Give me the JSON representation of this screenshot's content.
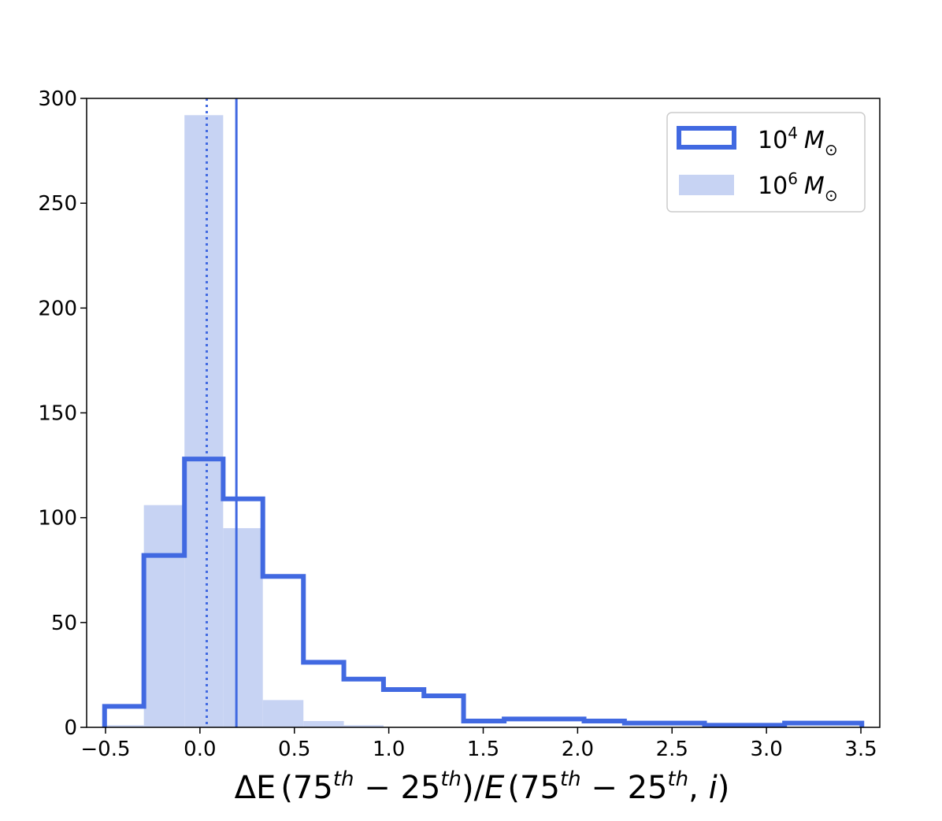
{
  "chart_data": {
    "type": "histogram",
    "xlabel": "ΔE(75th − 25th)/E(75th − 25th, i)",
    "ylabel": "",
    "xlim": [
      -0.6,
      3.6
    ],
    "ylim": [
      0,
      300
    ],
    "xticks": [
      -0.5,
      0.0,
      0.5,
      1.0,
      1.5,
      2.0,
      2.5,
      3.0,
      3.5
    ],
    "xtick_labels": [
      "−0.5",
      "0.0",
      "0.5",
      "1.0",
      "1.5",
      "2.0",
      "2.5",
      "3.0",
      "3.5"
    ],
    "yticks": [
      0,
      50,
      100,
      150,
      200,
      250,
      300
    ],
    "ytick_labels": [
      "0",
      "50",
      "100",
      "150",
      "200",
      "250",
      "300"
    ],
    "legend_position": "top-right",
    "grid": false,
    "series": [
      {
        "name": "10^4 M⊙",
        "style": "step",
        "color": "#4169e1",
        "bins": [
          {
            "x0": -0.505,
            "x1": -0.297,
            "count": 10
          },
          {
            "x0": -0.297,
            "x1": -0.082,
            "count": 82
          },
          {
            "x0": -0.082,
            "x1": 0.123,
            "count": 128
          },
          {
            "x0": 0.123,
            "x1": 0.333,
            "count": 109
          },
          {
            "x0": 0.333,
            "x1": 0.548,
            "count": 72
          },
          {
            "x0": 0.548,
            "x1": 0.762,
            "count": 31
          },
          {
            "x0": 0.762,
            "x1": 0.972,
            "count": 23
          },
          {
            "x0": 0.972,
            "x1": 1.186,
            "count": 18
          },
          {
            "x0": 1.186,
            "x1": 1.396,
            "count": 15
          },
          {
            "x0": 1.396,
            "x1": 1.611,
            "count": 3
          },
          {
            "x0": 1.611,
            "x1": 2.034,
            "count": 4
          },
          {
            "x0": 2.034,
            "x1": 2.248,
            "count": 3
          },
          {
            "x0": 2.248,
            "x1": 2.672,
            "count": 2
          },
          {
            "x0": 2.672,
            "x1": 3.096,
            "count": 1
          },
          {
            "x0": 3.096,
            "x1": 3.505,
            "count": 2
          }
        ]
      },
      {
        "name": "10^6 M⊙",
        "style": "filled",
        "color": "#c7d3f3",
        "bins": [
          {
            "x0": -0.505,
            "x1": -0.297,
            "count": 1
          },
          {
            "x0": -0.297,
            "x1": -0.082,
            "count": 106
          },
          {
            "x0": -0.082,
            "x1": 0.123,
            "count": 292
          },
          {
            "x0": 0.123,
            "x1": 0.333,
            "count": 95
          },
          {
            "x0": 0.333,
            "x1": 0.548,
            "count": 13
          },
          {
            "x0": 0.548,
            "x1": 0.762,
            "count": 3
          },
          {
            "x0": 0.762,
            "x1": 0.972,
            "count": 1
          }
        ]
      }
    ],
    "vlines": [
      {
        "x": 0.036,
        "style": "dotted",
        "color": "#4169e1"
      },
      {
        "x": 0.193,
        "style": "solid",
        "color": "#4169e1"
      }
    ]
  }
}
